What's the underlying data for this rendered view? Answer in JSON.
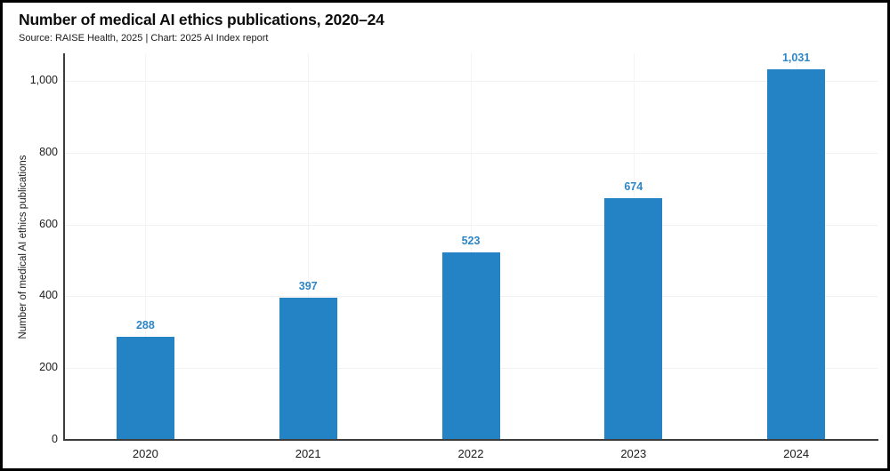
{
  "header": {
    "title": "Number of medical AI ethics publications, 2020–24",
    "source": "Source: RAISE Health, 2025 | Chart: 2025 AI Index report"
  },
  "chart_data": {
    "type": "bar",
    "title": "Number of medical AI ethics publications, 2020–24",
    "categories": [
      "2020",
      "2021",
      "2022",
      "2023",
      "2024"
    ],
    "values": [
      288,
      397,
      523,
      674,
      1031
    ],
    "value_labels": [
      "288",
      "397",
      "523",
      "674",
      "1,031"
    ],
    "xlabel": "",
    "ylabel": "Number of medical AI ethics publications",
    "ylim": [
      0,
      1080
    ],
    "yticks": [
      0,
      200,
      400,
      600,
      800,
      1000
    ],
    "ytick_labels": [
      "0",
      "200",
      "400",
      "600",
      "800",
      "1,000"
    ],
    "grid": true,
    "legend": "none",
    "bar_color": "#2383c5",
    "value_label_color": "#2e86c6",
    "axis_color": "#3c3c3c"
  }
}
